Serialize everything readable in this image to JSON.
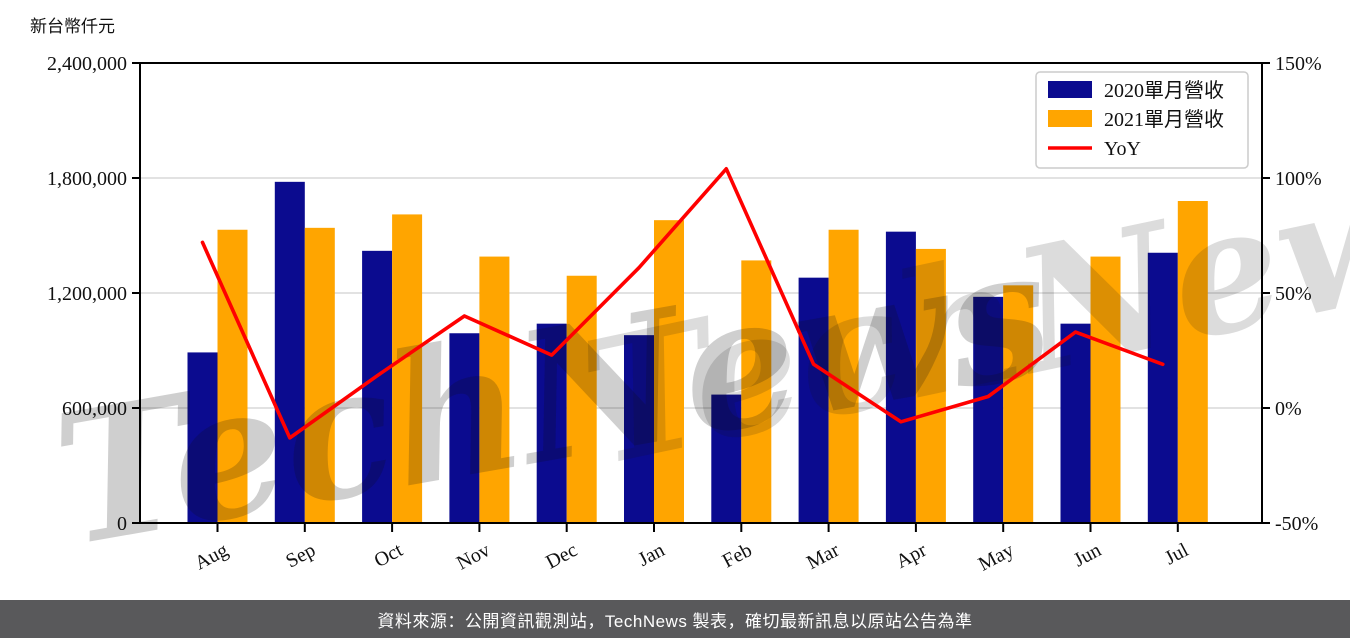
{
  "footer": {
    "text": "資料來源：公開資訊觀測站，TechNews 製表，確切最新訊息以原站公告為準",
    "background": "#59595b",
    "text_color": "#ffffff"
  },
  "watermark": {
    "text": "TechNews"
  },
  "colors": {
    "grid": "#d8d8d8",
    "axis": "#000000",
    "tick_label": "#111111",
    "legend_border": "#cccccc",
    "legend_fill": "#ffffff",
    "watermark_gray": "#999999",
    "watermark_pink": "#dd6666"
  },
  "chart_data": {
    "type": "combo",
    "ylabel": "新台幣仟元",
    "categories": [
      "Aug",
      "Sep",
      "Oct",
      "Nov",
      "Dec",
      "Jan",
      "Feb",
      "Mar",
      "Apr",
      "May",
      "Jun",
      "Jul"
    ],
    "series": [
      {
        "name": "2020單月營收",
        "type": "bar",
        "axis": "left",
        "color": "#0b0b8f",
        "values": [
          890000,
          1780000,
          1420000,
          990000,
          1040000,
          980000,
          670000,
          1280000,
          1520000,
          1180000,
          1040000,
          1410000
        ]
      },
      {
        "name": "2021單月營收",
        "type": "bar",
        "axis": "left",
        "color": "#ffa500",
        "values": [
          1530000,
          1540000,
          1610000,
          1390000,
          1290000,
          1580000,
          1370000,
          1530000,
          1430000,
          1240000,
          1390000,
          1680000
        ]
      },
      {
        "name": "YoY",
        "type": "line",
        "axis": "right",
        "color": "#ff0000",
        "values": [
          72,
          -13,
          14,
          40,
          23,
          61,
          104,
          19,
          -6,
          5,
          33,
          19
        ]
      }
    ],
    "left_axis": {
      "min": 0,
      "max": 2400000,
      "ticks": [
        0,
        600000,
        1200000,
        1800000,
        2400000
      ]
    },
    "right_axis": {
      "min": -50,
      "max": 150,
      "ticks": [
        -50,
        0,
        50,
        100,
        150
      ],
      "suffix": "%"
    },
    "grid": true,
    "legend_position": "top-right"
  }
}
